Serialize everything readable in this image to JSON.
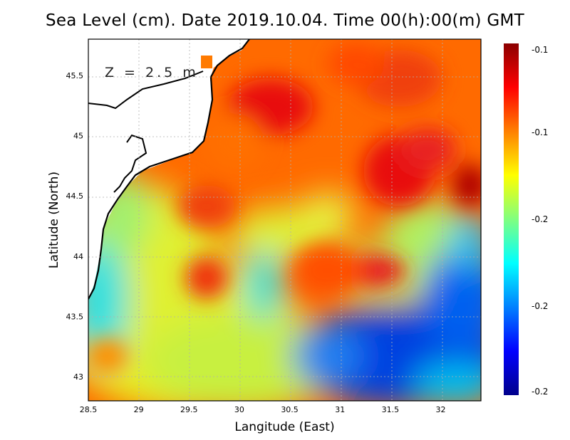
{
  "title": "Sea Level (cm). Date 2019.10.04. Time 00(h):00(m) GMT",
  "depth_label": "Z = 2.5 m",
  "xaxis": {
    "label": "Langitude (East)",
    "ticks": [
      "28.5",
      "29",
      "29.5",
      "30",
      "30.5",
      "31",
      "31.5",
      "32"
    ],
    "values": [
      28.5,
      29,
      29.5,
      30,
      30.5,
      31,
      31.5,
      32
    ],
    "range": [
      28.5,
      32.4
    ]
  },
  "yaxis": {
    "label": "Latitude (North)",
    "ticks": [
      "43",
      "43.5",
      "44",
      "44.5",
      "45",
      "45.5"
    ],
    "values": [
      43,
      43.5,
      44,
      44.5,
      45,
      45.5
    ],
    "range": [
      42.8,
      45.8
    ]
  },
  "colorbar": {
    "ticks": [
      "-0.1",
      "-0.1",
      "-0.2",
      "-0.2",
      "-0.2"
    ],
    "colors": [
      "#8b0000",
      "#ff0000",
      "#ff8000",
      "#ffff00",
      "#80ff80",
      "#00ffff",
      "#0080ff",
      "#0000ff",
      "#00008b"
    ]
  },
  "map": {
    "background": "Sea level field over the western Black Sea",
    "land_color": "#ffffff",
    "coastline_color": "#000000"
  }
}
